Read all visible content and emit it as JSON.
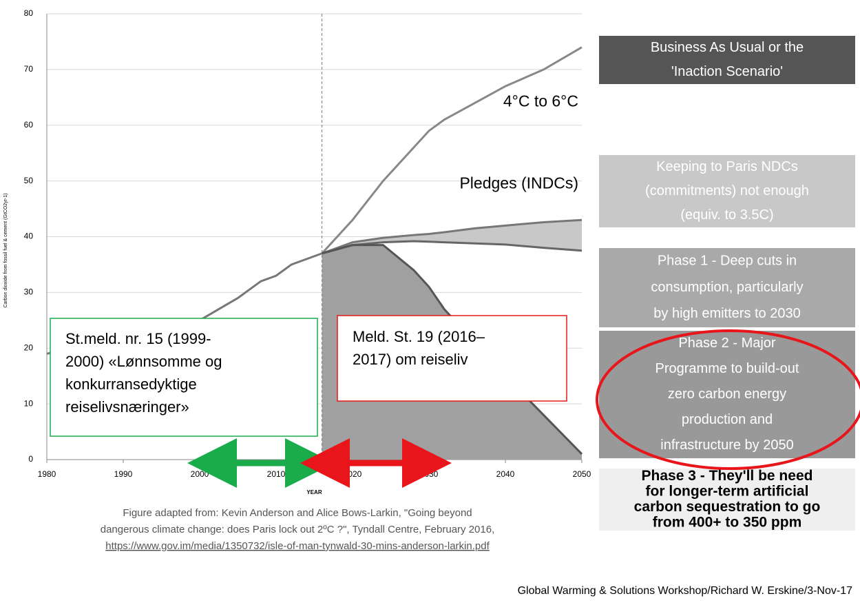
{
  "chart_data": {
    "type": "line",
    "x": [
      1980,
      1990,
      2000,
      2005,
      2008,
      2010,
      2012,
      2016,
      2020,
      2024,
      2028,
      2030,
      2032,
      2036,
      2040,
      2045,
      2050
    ],
    "xlim": [
      1980,
      2050
    ],
    "xticks": [
      1980,
      1990,
      2000,
      2010,
      2020,
      2030,
      2040,
      2050
    ],
    "ylim": [
      0,
      80
    ],
    "yticks": [
      0,
      10,
      20,
      30,
      40,
      50,
      60,
      70,
      80
    ],
    "grid": true,
    "xlabel": "YEAR",
    "ylabel": "Carbon dioxide from fossil fuel & cement (GtCO2yr-1)",
    "series": [
      {
        "color": "#777777",
        "values": [
          19,
          22,
          25,
          29,
          32,
          33,
          35,
          37,
          null,
          null,
          null,
          null,
          null,
          null,
          null,
          null,
          null
        ]
      },
      {
        "name": "4°C to 6°C",
        "color": "#888888",
        "values": [
          null,
          null,
          null,
          null,
          null,
          null,
          null,
          37,
          43,
          50,
          56,
          59,
          61,
          64,
          67,
          70,
          74
        ]
      },
      {
        "name": "Pledges (INDCs)",
        "color": "#777777",
        "values": [
          null,
          null,
          null,
          null,
          null,
          null,
          null,
          37,
          39,
          39.8,
          40.3,
          40.5,
          40.8,
          41.5,
          42,
          42.6,
          43
        ]
      },
      {
        "color": "#666666",
        "values": [
          null,
          null,
          null,
          null,
          null,
          null,
          null,
          37,
          38.5,
          39,
          39.2,
          39.1,
          39,
          38.8,
          38.6,
          38,
          37.5
        ]
      },
      {
        "color": "#555555",
        "values": [
          null,
          null,
          null,
          null,
          null,
          null,
          null,
          37,
          38.5,
          38.5,
          34,
          31,
          27,
          21,
          15,
          8,
          1
        ]
      }
    ]
  },
  "notes": {
    "green": [
      "St.meld. nr. 15 (1999-",
      "2000) «Lønnsomme og",
      "konkurransedyktige",
      "reiselivsnæringer»"
    ],
    "red": [
      "Meld. St. 19 (2016–",
      "2017) om reiseliv"
    ]
  },
  "boxes": [
    [
      "Business As Usual or the",
      "'Inaction Scenario'"
    ],
    [
      "Keeping to Paris NDCs",
      "(commitments) not enough",
      "(equiv. to 3.5C)"
    ],
    [
      "Phase 1  - Deep cuts in",
      "consumption, particularly",
      "by high emitters to 2030"
    ],
    [
      "Phase 2 - Major",
      "Programme to build-out",
      "zero carbon energy",
      "production and",
      "infrastructure by 2050"
    ],
    [
      "Phase 3 - They'll be need",
      "for longer-term artificial",
      "carbon sequestration to go",
      "from 400+ to 350 ppm"
    ]
  ],
  "caption": [
    "Figure adapted from: Kevin Anderson and Alice Bows-Larkin, \"Going beyond",
    "dangerous climate change: does Paris lock out 2ºC ?\", Tyndall Centre, February 2016,",
    "https://www.gov.im/media/1350732/isle-of-man-tynwald-30-mins-anderson-larkin.pdf"
  ],
  "footer": "Global Warming & Solutions Workshop/Richard W. Erskine/3-Nov-17"
}
